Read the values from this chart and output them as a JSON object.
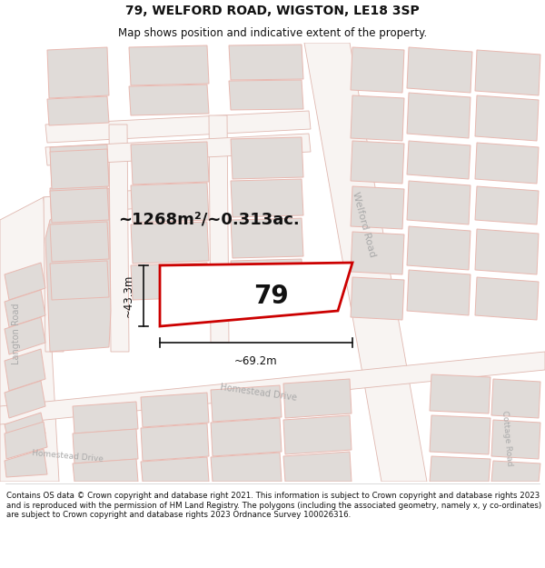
{
  "title": "79, WELFORD ROAD, WIGSTON, LE18 3SP",
  "subtitle": "Map shows position and indicative extent of the property.",
  "footer": "Contains OS data © Crown copyright and database right 2021. This information is subject to Crown copyright and database rights 2023 and is reproduced with the permission of HM Land Registry. The polygons (including the associated geometry, namely x, y co-ordinates) are subject to Crown copyright and database rights 2023 Ordnance Survey 100026316.",
  "area_label": "~1268m²/~0.313ac.",
  "width_label": "~69.2m",
  "height_label": "~43.3m",
  "property_number": "79",
  "bg_color": "#f4f0ee",
  "highlight_color": "#cc0000",
  "building_fill": "#e0dbd8",
  "building_edge": "#e8b8b0",
  "road_fill": "#ffffff",
  "road_edge": "#e0b8b0",
  "dim_color": "#111111",
  "text_color": "#111111",
  "road_label_color": "#aaaaaa",
  "title_fontsize": 10,
  "subtitle_fontsize": 8.5,
  "footer_fontsize": 6.2
}
